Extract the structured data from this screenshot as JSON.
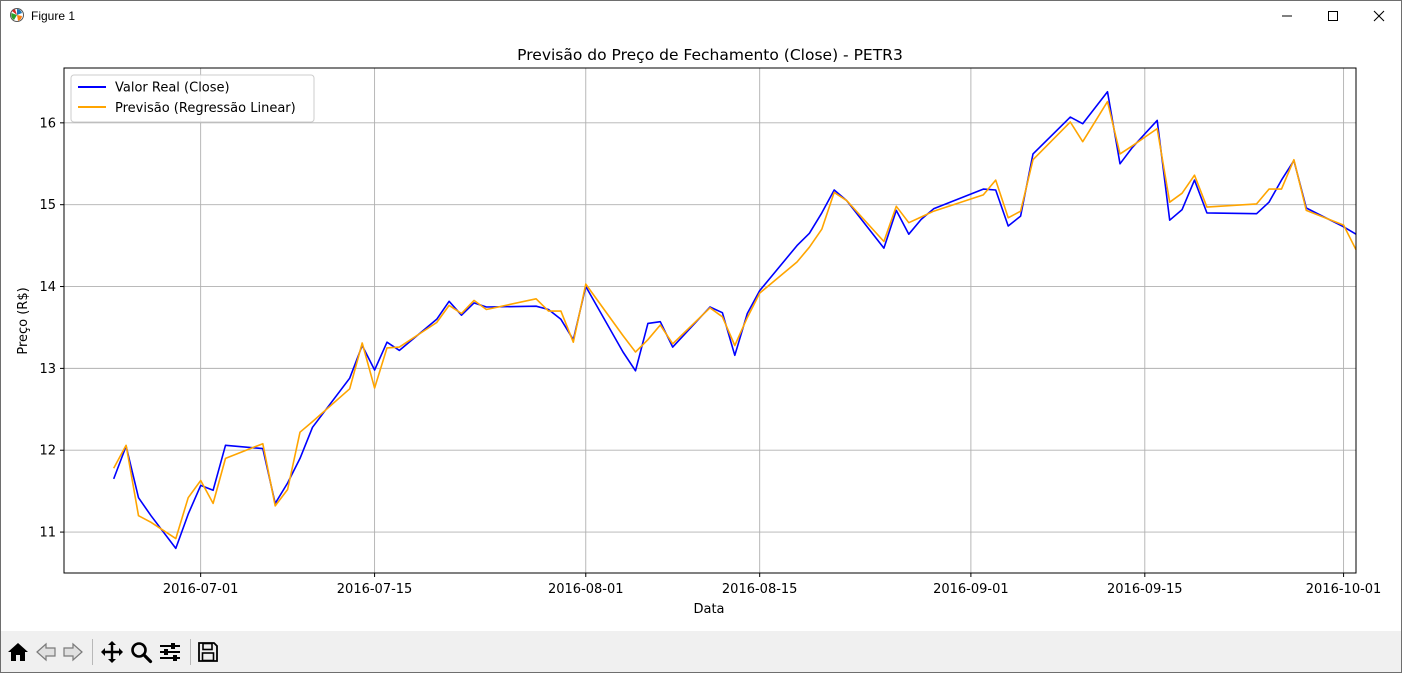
{
  "window": {
    "title": "Figure 1"
  },
  "toolbar": {
    "buttons": [
      "home-icon",
      "back-icon",
      "forward-icon",
      "pan-icon",
      "zoom-icon",
      "configure-subplots-icon",
      "save-icon"
    ]
  },
  "colors": {
    "real": "#0000ff",
    "pred": "#ffa500",
    "grid": "#b0b0b0"
  },
  "chart_data": {
    "type": "line",
    "title": "Previsão do Preço de Fechamento (Close) - PETR3",
    "xlabel": "Data",
    "ylabel": "Preço (R$)",
    "grid": true,
    "legend_position": "top-left",
    "xlim": [
      "2016-06-20",
      "2016-10-02"
    ],
    "ylim": [
      10.5,
      16.67
    ],
    "x_ticks": [
      {
        "date": "2016-07-01",
        "label": "2016-07-01"
      },
      {
        "date": "2016-07-15",
        "label": "2016-07-15"
      },
      {
        "date": "2016-08-01",
        "label": "2016-08-01"
      },
      {
        "date": "2016-08-15",
        "label": "2016-08-15"
      },
      {
        "date": "2016-09-01",
        "label": "2016-09-01"
      },
      {
        "date": "2016-09-15",
        "label": "2016-09-15"
      },
      {
        "date": "2016-10-01",
        "label": "2016-10-01"
      }
    ],
    "y_ticks": [
      11,
      12,
      13,
      14,
      15,
      16
    ],
    "series": [
      {
        "name": "Valor Real (Close)",
        "points": [
          [
            "2016-06-24",
            11.65
          ],
          [
            "2016-06-25",
            12.05
          ],
          [
            "2016-06-26",
            11.42
          ],
          [
            "2016-06-27",
            11.2
          ],
          [
            "2016-06-29",
            10.8
          ],
          [
            "2016-06-30",
            11.22
          ],
          [
            "2016-07-01",
            11.57
          ],
          [
            "2016-07-02",
            11.51
          ],
          [
            "2016-07-03",
            12.06
          ],
          [
            "2016-07-06",
            12.02
          ],
          [
            "2016-07-07",
            11.35
          ],
          [
            "2016-07-08",
            11.6
          ],
          [
            "2016-07-09",
            11.9
          ],
          [
            "2016-07-10",
            12.28
          ],
          [
            "2016-07-13",
            12.88
          ],
          [
            "2016-07-14",
            13.28
          ],
          [
            "2016-07-15",
            12.98
          ],
          [
            "2016-07-16",
            13.32
          ],
          [
            "2016-07-17",
            13.22
          ],
          [
            "2016-07-20",
            13.6
          ],
          [
            "2016-07-21",
            13.82
          ],
          [
            "2016-07-22",
            13.65
          ],
          [
            "2016-07-23",
            13.8
          ],
          [
            "2016-07-24",
            13.75
          ],
          [
            "2016-07-28",
            13.76
          ],
          [
            "2016-07-29",
            13.72
          ],
          [
            "2016-07-30",
            13.6
          ],
          [
            "2016-07-31",
            13.35
          ],
          [
            "2016-08-01",
            14.0
          ],
          [
            "2016-08-04",
            13.2
          ],
          [
            "2016-08-05",
            12.97
          ],
          [
            "2016-08-06",
            13.55
          ],
          [
            "2016-08-07",
            13.57
          ],
          [
            "2016-08-08",
            13.26
          ],
          [
            "2016-08-11",
            13.75
          ],
          [
            "2016-08-12",
            13.68
          ],
          [
            "2016-08-13",
            13.16
          ],
          [
            "2016-08-14",
            13.67
          ],
          [
            "2016-08-15",
            13.95
          ],
          [
            "2016-08-18",
            14.5
          ],
          [
            "2016-08-19",
            14.65
          ],
          [
            "2016-08-20",
            14.9
          ],
          [
            "2016-08-21",
            15.18
          ],
          [
            "2016-08-22",
            15.05
          ],
          [
            "2016-08-25",
            14.47
          ],
          [
            "2016-08-26",
            14.93
          ],
          [
            "2016-08-27",
            14.64
          ],
          [
            "2016-08-28",
            14.82
          ],
          [
            "2016-08-29",
            14.95
          ],
          [
            "2016-09-02",
            15.19
          ],
          [
            "2016-09-03",
            15.18
          ],
          [
            "2016-09-04",
            14.74
          ],
          [
            "2016-09-05",
            14.86
          ],
          [
            "2016-09-06",
            15.62
          ],
          [
            "2016-09-09",
            16.07
          ],
          [
            "2016-09-10",
            15.99
          ],
          [
            "2016-09-12",
            16.38
          ],
          [
            "2016-09-13",
            15.5
          ],
          [
            "2016-09-14",
            15.7
          ],
          [
            "2016-09-16",
            16.03
          ],
          [
            "2016-09-17",
            14.81
          ],
          [
            "2016-09-18",
            14.94
          ],
          [
            "2016-09-19",
            15.3
          ],
          [
            "2016-09-20",
            14.9
          ],
          [
            "2016-09-24",
            14.89
          ],
          [
            "2016-09-25",
            15.03
          ],
          [
            "2016-09-26",
            15.3
          ],
          [
            "2016-09-27",
            15.54
          ],
          [
            "2016-09-28",
            14.96
          ],
          [
            "2016-10-01",
            14.73
          ],
          [
            "2016-10-02",
            14.64
          ]
        ]
      },
      {
        "name": "Previsão (Regressão Linear)",
        "points": [
          [
            "2016-06-24",
            11.78
          ],
          [
            "2016-06-25",
            12.06
          ],
          [
            "2016-06-26",
            11.2
          ],
          [
            "2016-06-27",
            11.12
          ],
          [
            "2016-06-29",
            10.92
          ],
          [
            "2016-06-30",
            11.42
          ],
          [
            "2016-07-01",
            11.63
          ],
          [
            "2016-07-02",
            11.35
          ],
          [
            "2016-07-03",
            11.9
          ],
          [
            "2016-07-06",
            12.08
          ],
          [
            "2016-07-07",
            11.32
          ],
          [
            "2016-07-08",
            11.52
          ],
          [
            "2016-07-09",
            12.22
          ],
          [
            "2016-07-10",
            12.35
          ],
          [
            "2016-07-13",
            12.75
          ],
          [
            "2016-07-14",
            13.31
          ],
          [
            "2016-07-15",
            12.76
          ],
          [
            "2016-07-16",
            13.25
          ],
          [
            "2016-07-17",
            13.26
          ],
          [
            "2016-07-20",
            13.56
          ],
          [
            "2016-07-21",
            13.77
          ],
          [
            "2016-07-22",
            13.67
          ],
          [
            "2016-07-23",
            13.83
          ],
          [
            "2016-07-24",
            13.72
          ],
          [
            "2016-07-28",
            13.85
          ],
          [
            "2016-07-29",
            13.7
          ],
          [
            "2016-07-30",
            13.7
          ],
          [
            "2016-07-31",
            13.32
          ],
          [
            "2016-08-01",
            14.03
          ],
          [
            "2016-08-04",
            13.4
          ],
          [
            "2016-08-05",
            13.2
          ],
          [
            "2016-08-06",
            13.35
          ],
          [
            "2016-08-07",
            13.53
          ],
          [
            "2016-08-08",
            13.3
          ],
          [
            "2016-08-11",
            13.74
          ],
          [
            "2016-08-12",
            13.63
          ],
          [
            "2016-08-13",
            13.28
          ],
          [
            "2016-08-14",
            13.62
          ],
          [
            "2016-08-15",
            13.92
          ],
          [
            "2016-08-18",
            14.3
          ],
          [
            "2016-08-19",
            14.48
          ],
          [
            "2016-08-20",
            14.7
          ],
          [
            "2016-08-21",
            15.15
          ],
          [
            "2016-08-22",
            15.05
          ],
          [
            "2016-08-25",
            14.55
          ],
          [
            "2016-08-26",
            14.98
          ],
          [
            "2016-08-27",
            14.78
          ],
          [
            "2016-08-28",
            14.85
          ],
          [
            "2016-08-29",
            14.92
          ],
          [
            "2016-09-02",
            15.12
          ],
          [
            "2016-09-03",
            15.3
          ],
          [
            "2016-09-04",
            14.84
          ],
          [
            "2016-09-05",
            14.92
          ],
          [
            "2016-09-06",
            15.55
          ],
          [
            "2016-09-09",
            16.01
          ],
          [
            "2016-09-10",
            15.77
          ],
          [
            "2016-09-12",
            16.26
          ],
          [
            "2016-09-13",
            15.62
          ],
          [
            "2016-09-14",
            15.72
          ],
          [
            "2016-09-16",
            15.93
          ],
          [
            "2016-09-17",
            15.03
          ],
          [
            "2016-09-18",
            15.14
          ],
          [
            "2016-09-19",
            15.36
          ],
          [
            "2016-09-20",
            14.97
          ],
          [
            "2016-09-24",
            15.01
          ],
          [
            "2016-09-25",
            15.19
          ],
          [
            "2016-09-26",
            15.19
          ],
          [
            "2016-09-27",
            15.55
          ],
          [
            "2016-09-28",
            14.93
          ],
          [
            "2016-10-01",
            14.75
          ],
          [
            "2016-10-02",
            14.45
          ]
        ]
      }
    ]
  }
}
